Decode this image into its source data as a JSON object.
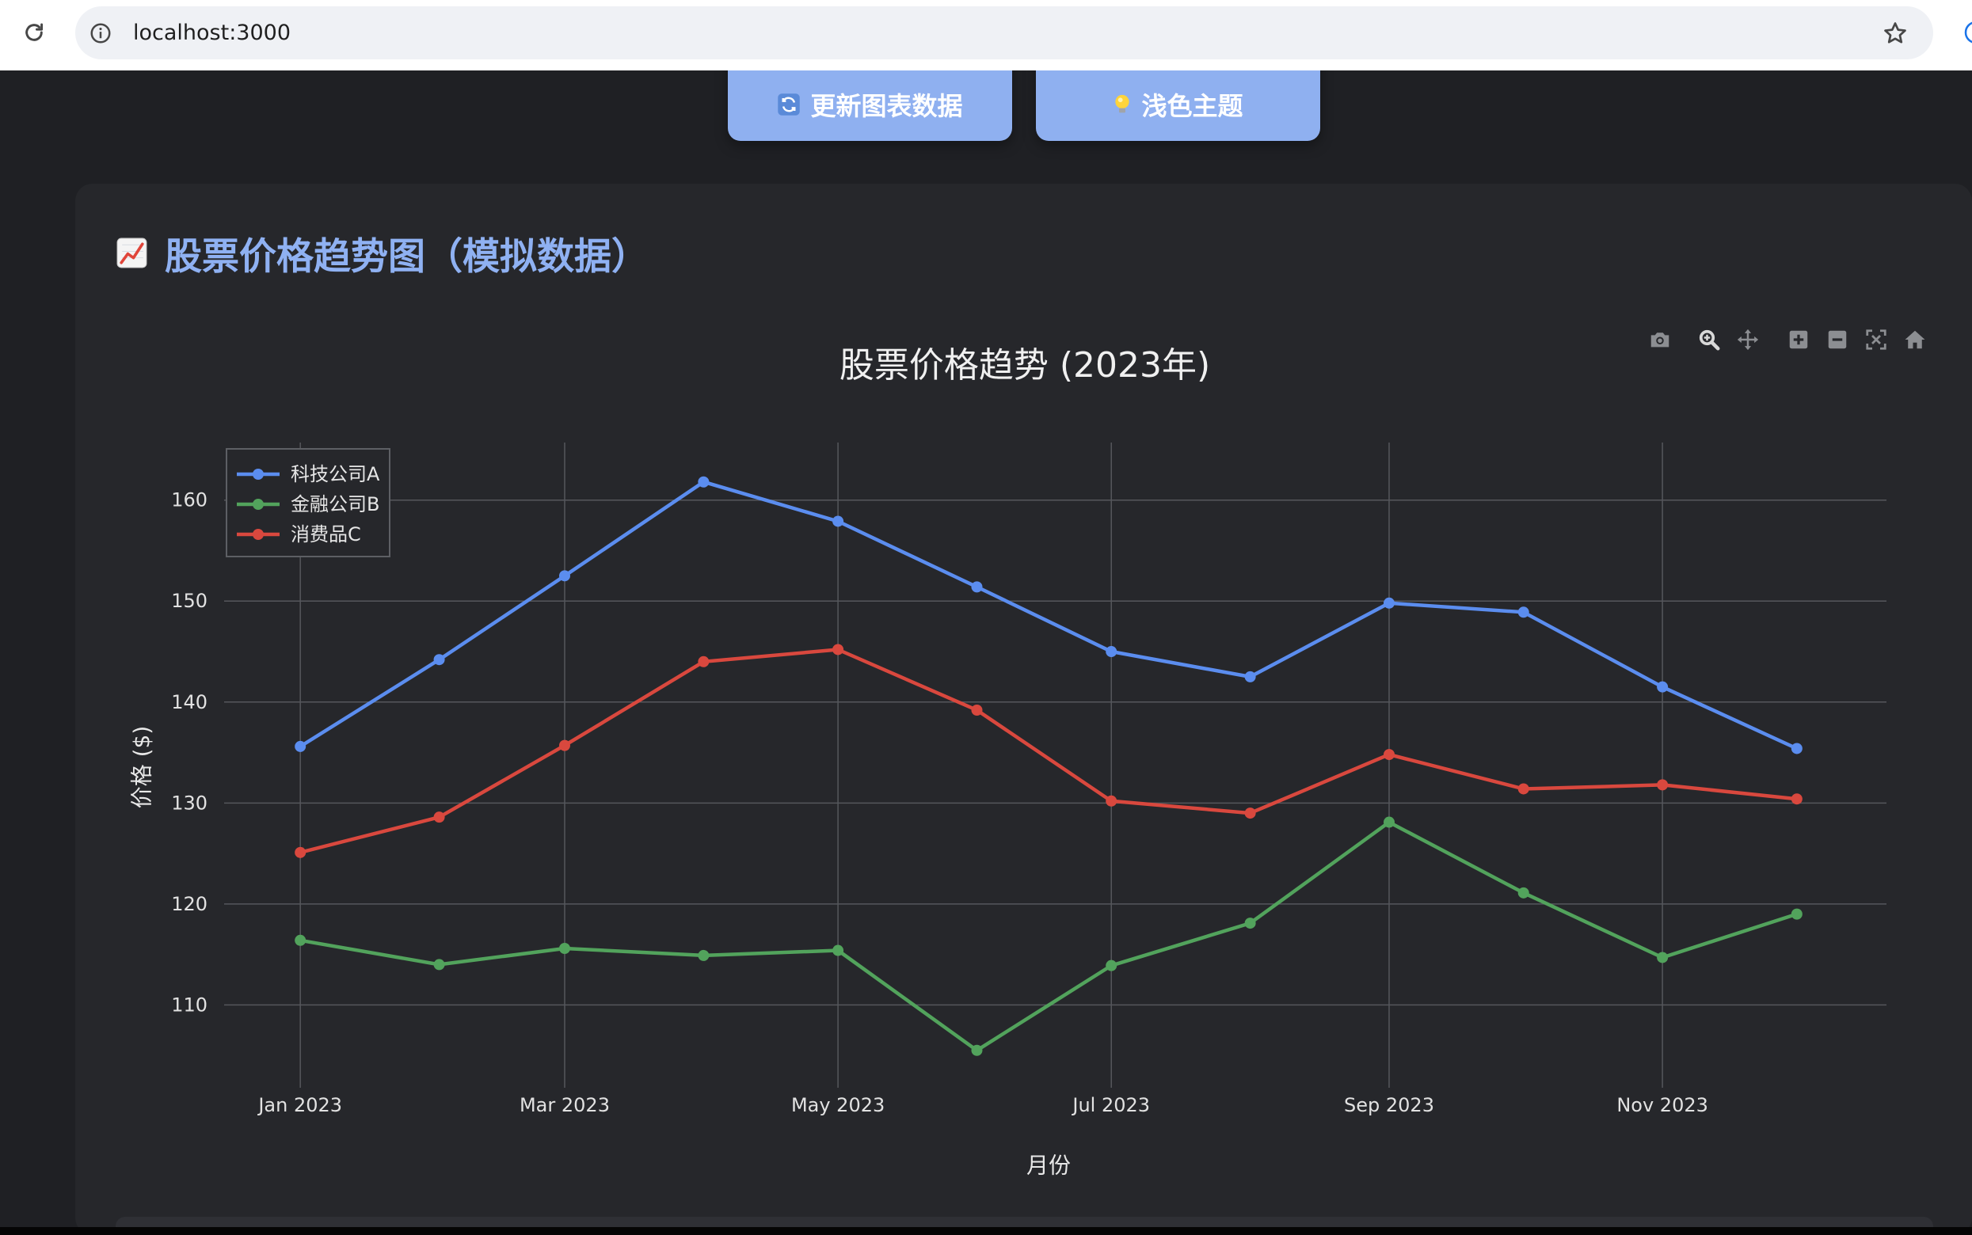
{
  "browser": {
    "url": "localhost:3000",
    "reload_icon": "reload-icon",
    "info_icon": "info-icon",
    "bookmark_icon": "star-icon",
    "profile_icon": "profile-icon"
  },
  "toolbar": {
    "refresh_button": {
      "icon": "refresh-icon",
      "label": "更新图表数据"
    },
    "theme_button": {
      "icon": "lightbulb-icon",
      "label": "浅色主题"
    }
  },
  "card": {
    "icon": "chart-increasing-icon",
    "title": "股票价格趋势图（模拟数据）"
  },
  "modebar": {
    "icons": [
      "camera-icon",
      "zoom-icon",
      "pan-icon",
      "zoom-in-icon",
      "zoom-out-icon",
      "autoscale-icon",
      "home-icon"
    ],
    "active": "zoom-icon"
  },
  "colors": {
    "page_background": "#1f2024",
    "card_background": "#26272b",
    "button_accent": "#8fb0f0",
    "card_title": "#8fb1f2"
  },
  "chart_data": {
    "type": "line",
    "mode": "lines+markers",
    "title": "股票价格趋势 (2023年)",
    "xlabel": "月份",
    "ylabel": "价格 ($)",
    "x": [
      "2023-01-01",
      "2023-02-01",
      "2023-03-01",
      "2023-04-01",
      "2023-05-01",
      "2023-06-01",
      "2023-07-01",
      "2023-08-01",
      "2023-09-01",
      "2023-10-01",
      "2023-11-01",
      "2023-12-01"
    ],
    "series": [
      {
        "name": "科技公司A",
        "color": "#5b8def",
        "values": [
          135.6,
          144.2,
          152.5,
          161.8,
          157.9,
          151.4,
          145.0,
          142.5,
          149.8,
          148.9,
          141.5,
          135.4
        ]
      },
      {
        "name": "金融公司B",
        "color": "#52a35c",
        "values": [
          116.4,
          114.0,
          115.6,
          114.9,
          115.4,
          105.5,
          113.9,
          118.1,
          128.1,
          121.1,
          114.7,
          119.0
        ]
      },
      {
        "name": "消费品C",
        "color": "#d9483e",
        "values": [
          125.1,
          128.6,
          135.7,
          144.0,
          145.2,
          139.2,
          130.2,
          129.0,
          134.8,
          131.4,
          131.8,
          130.4
        ]
      }
    ],
    "xlim": [
      "2022-12-15",
      "2023-12-21"
    ],
    "ylim": [
      101.8,
      165.7
    ],
    "y_ticks": [
      110,
      120,
      130,
      140,
      150,
      160
    ],
    "x_ticks": [
      {
        "value": "2023-01-01",
        "label": "Jan 2023"
      },
      {
        "value": "2023-03-01",
        "label": "Mar 2023"
      },
      {
        "value": "2023-05-01",
        "label": "May 2023"
      },
      {
        "value": "2023-07-01",
        "label": "Jul 2023"
      },
      {
        "value": "2023-09-01",
        "label": "Sep 2023"
      },
      {
        "value": "2023-11-01",
        "label": "Nov 2023"
      }
    ],
    "grid": true,
    "legend": "top-left"
  }
}
